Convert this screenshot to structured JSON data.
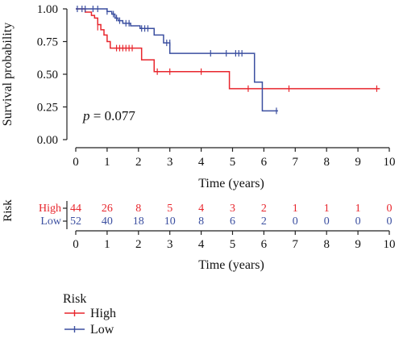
{
  "chart_data": {
    "type": "line",
    "subtype": "kaplan-meier",
    "ylabel": "Survival probability",
    "xlabel": "Time (years)",
    "xlim": [
      0,
      10
    ],
    "ylim": [
      0,
      1
    ],
    "x_ticks": [
      "0",
      "1",
      "2",
      "3",
      "4",
      "5",
      "6",
      "7",
      "8",
      "9",
      "10"
    ],
    "y_ticks": [
      "0.00",
      "0.25",
      "0.50",
      "0.75",
      "1.00"
    ],
    "annotation_italic": "p",
    "annotation_rest": " = 0.077",
    "series": [
      {
        "name": "High",
        "color": "#e8262d",
        "steps": [
          [
            0,
            1.0
          ],
          [
            0.3,
            0.975
          ],
          [
            0.5,
            0.95
          ],
          [
            0.6,
            0.93
          ],
          [
            0.7,
            0.88
          ],
          [
            0.8,
            0.84
          ],
          [
            0.9,
            0.8
          ],
          [
            1.0,
            0.75
          ],
          [
            1.1,
            0.7
          ],
          [
            2.1,
            0.61
          ],
          [
            2.5,
            0.52
          ],
          [
            4.9,
            0.39
          ],
          [
            9.7,
            0.39
          ]
        ],
        "censors": [
          [
            0.7,
            0.86
          ],
          [
            1.3,
            0.7
          ],
          [
            1.4,
            0.7
          ],
          [
            1.5,
            0.7
          ],
          [
            1.6,
            0.7
          ],
          [
            1.7,
            0.7
          ],
          [
            1.8,
            0.7
          ],
          [
            2.6,
            0.52
          ],
          [
            3.0,
            0.52
          ],
          [
            4.0,
            0.52
          ],
          [
            5.5,
            0.39
          ],
          [
            6.8,
            0.39
          ],
          [
            9.6,
            0.39
          ]
        ]
      },
      {
        "name": "Low",
        "color": "#3b4fa0",
        "steps": [
          [
            0,
            1.0
          ],
          [
            1.0,
            0.98
          ],
          [
            1.15,
            0.96
          ],
          [
            1.25,
            0.93
          ],
          [
            1.35,
            0.91
          ],
          [
            1.5,
            0.89
          ],
          [
            1.75,
            0.87
          ],
          [
            2.05,
            0.85
          ],
          [
            2.5,
            0.8
          ],
          [
            2.8,
            0.74
          ],
          [
            3.0,
            0.66
          ],
          [
            5.7,
            0.44
          ],
          [
            5.95,
            0.22
          ],
          [
            6.45,
            0.22
          ]
        ],
        "censors": [
          [
            0.05,
            1.0
          ],
          [
            0.2,
            1.0
          ],
          [
            0.3,
            1.0
          ],
          [
            0.55,
            1.0
          ],
          [
            0.7,
            1.0
          ],
          [
            1.0,
            0.98
          ],
          [
            1.2,
            0.96
          ],
          [
            1.3,
            0.93
          ],
          [
            1.4,
            0.91
          ],
          [
            1.6,
            0.89
          ],
          [
            1.7,
            0.89
          ],
          [
            2.1,
            0.85
          ],
          [
            2.2,
            0.85
          ],
          [
            2.3,
            0.85
          ],
          [
            2.9,
            0.74
          ],
          [
            3.0,
            0.74
          ],
          [
            4.3,
            0.66
          ],
          [
            4.8,
            0.66
          ],
          [
            5.1,
            0.66
          ],
          [
            5.2,
            0.66
          ],
          [
            5.3,
            0.66
          ],
          [
            6.4,
            0.22
          ]
        ]
      }
    ],
    "risk_table": {
      "title": "Risk",
      "xlabel": "Time (years)",
      "rows": [
        {
          "name": "High",
          "color": "#e8262d",
          "values": [
            "44",
            "26",
            "8",
            "5",
            "4",
            "3",
            "2",
            "1",
            "1",
            "1",
            "0"
          ]
        },
        {
          "name": "Low",
          "color": "#3b4fa0",
          "values": [
            "52",
            "40",
            "18",
            "10",
            "8",
            "6",
            "2",
            "0",
            "0",
            "0",
            "0"
          ]
        }
      ]
    },
    "legend": {
      "title": "Risk",
      "placement": "bottom-left",
      "items": [
        {
          "label": "High",
          "color": "#e8262d"
        },
        {
          "label": "Low",
          "color": "#3b4fa0"
        }
      ]
    }
  }
}
